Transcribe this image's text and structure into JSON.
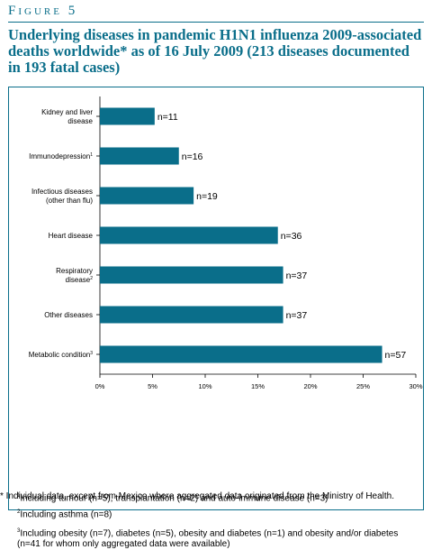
{
  "figure": {
    "label": "Figure 5",
    "title": "Underlying diseases in pandemic H1N1 influenza 2009-associated deaths worldwide* as of 16 July 2009 (213 diseases documented in 193 fatal cases)"
  },
  "chart_data": {
    "type": "bar",
    "orientation": "horizontal",
    "categories": [
      {
        "line1": "Kidney and liver",
        "line2": "disease",
        "sup": ""
      },
      {
        "line1": "Immunodepression",
        "line2": "",
        "sup": "1"
      },
      {
        "line1": "Infectious diseases",
        "line2": "(other than flu)",
        "sup": ""
      },
      {
        "line1": "Heart disease",
        "line2": "",
        "sup": ""
      },
      {
        "line1": "Respiratory",
        "line2": "disease",
        "sup": "2"
      },
      {
        "line1": "Other diseases",
        "line2": "",
        "sup": ""
      },
      {
        "line1": "Metabolic condition",
        "line2": "",
        "sup": "3"
      }
    ],
    "values": [
      5.2,
      7.5,
      8.9,
      16.9,
      17.4,
      17.4,
      26.8
    ],
    "value_labels": [
      "n=11",
      "n=16",
      "n=19",
      "n=36",
      "n=37",
      "n=37",
      "n=57"
    ],
    "xlim": [
      0,
      30
    ],
    "xticks": [
      "0%",
      "5%",
      "10%",
      "15%",
      "20%",
      "25%",
      "30%"
    ],
    "bar_color": "#0a6e8a",
    "grid": false,
    "xlabel": "",
    "ylabel": ""
  },
  "footnotes": {
    "f1": {
      "sup": "1",
      "text": "Including tumour (n=5), transplantation (n=2) and auto-immune disease (n=3)"
    },
    "f2": {
      "sup": "2",
      "text": "Including asthma (n=8)"
    },
    "f3": {
      "sup": "3",
      "text": "Including obesity (n=7), diabetes (n=5), obesity and diabetes (n=1) and obesity and/or diabetes (n=41 for whom only aggregated data were available)"
    },
    "star": "* Individual data, except from Mexico where aggregated data originated from the Ministry of Health."
  }
}
